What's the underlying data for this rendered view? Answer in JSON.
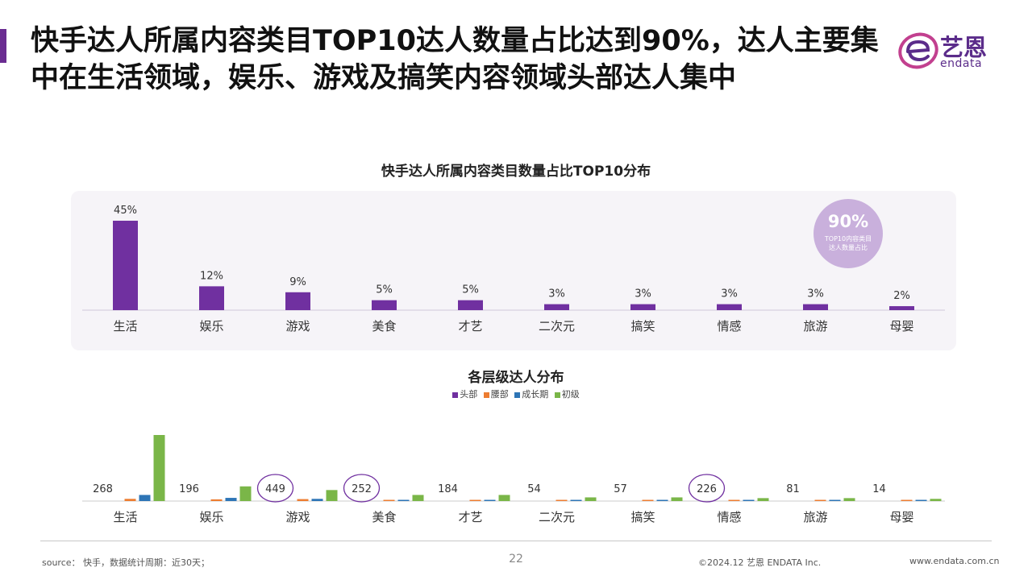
{
  "title": "快手达人所属内容类目TOP10达人数量占比达到90%，达人主要集中在生活领域，娱乐、游戏及搞笑内容领域头部达人集中",
  "logo": {
    "name": "艺恩",
    "sub": "endata"
  },
  "colors": {
    "accent": "#6a2c91",
    "bar": "#7030a0",
    "head": "#7030a0",
    "waist": "#ed7d31",
    "growth": "#2e75b6",
    "beginner": "#7ab648",
    "badge": "#c9b0dc"
  },
  "badge": {
    "value": "90%",
    "caption": "TOP10内容类目达人数量占比"
  },
  "chart_data": [
    {
      "type": "bar",
      "title": "快手达人所属内容类目数量占比TOP10分布",
      "categories": [
        "生活",
        "娱乐",
        "游戏",
        "美食",
        "才艺",
        "二次元",
        "搞笑",
        "情感",
        "旅游",
        "母婴"
      ],
      "values": [
        45,
        12,
        9,
        5,
        5,
        3,
        3,
        3,
        3,
        2
      ],
      "value_labels": [
        "45%",
        "12%",
        "9%",
        "5%",
        "5%",
        "3%",
        "3%",
        "3%",
        "3%",
        "2%"
      ],
      "unit": "%"
    },
    {
      "type": "bar",
      "title": "各层级达人分布",
      "categories": [
        "生活",
        "娱乐",
        "游戏",
        "美食",
        "才艺",
        "二次元",
        "搞笑",
        "情感",
        "旅游",
        "母婴"
      ],
      "head_labels": [
        "268",
        "196",
        "449",
        "252",
        "184",
        "54",
        "57",
        "226",
        "81",
        "14"
      ],
      "highlighted": [
        "游戏",
        "美食",
        "情感"
      ],
      "legend_position": "top-center",
      "series": [
        {
          "name": "头部",
          "values": [
            268,
            196,
            449,
            252,
            184,
            54,
            57,
            226,
            81,
            14
          ]
        },
        {
          "name": "腰部",
          "values": [
            900,
            700,
            800,
            300,
            200,
            100,
            100,
            150,
            150,
            100
          ]
        },
        {
          "name": "成长期",
          "values": [
            2500,
            1300,
            900,
            500,
            400,
            300,
            300,
            350,
            350,
            250
          ]
        },
        {
          "name": "初级",
          "values": [
            27000,
            6000,
            4500,
            2500,
            2500,
            1500,
            1500,
            1200,
            1200,
            900
          ]
        }
      ]
    }
  ],
  "footer": {
    "source": "source： 快手，数据统计周期：近30天；",
    "page": "22",
    "copyright": "©2024.12  艺恩 ENDATA Inc.",
    "website": "www.endata.com.cn"
  }
}
